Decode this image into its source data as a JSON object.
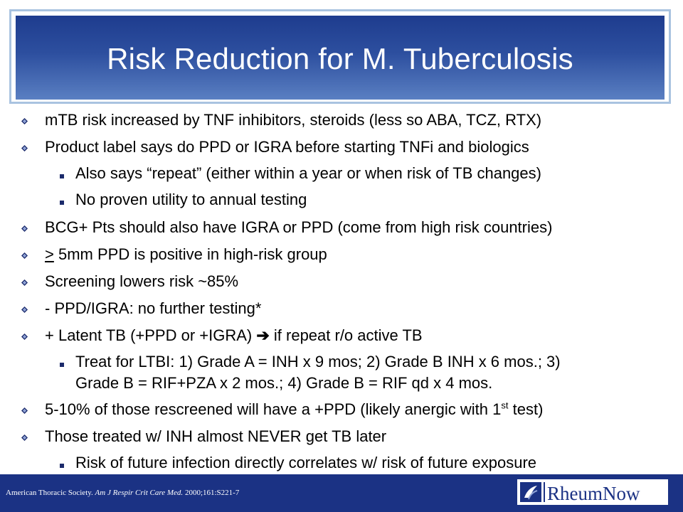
{
  "slide": {
    "title": "Risk Reduction for M. Tuberculosis",
    "bullets": {
      "b0": "mTB risk increased by TNF inhibitors, steroids (less so ABA, TCZ, RTX)",
      "b1": "Product label says do PPD or IGRA before starting TNFi and biologics",
      "b1a": "Also says “repeat” (either within a year or when risk of TB changes)",
      "b1b": "No proven utility to annual testing",
      "b2": "BCG+ Pts should also have IGRA or PPD (come from high risk countries)",
      "b3_sym": ">",
      "b3": " 5mm PPD is positive in high-risk group",
      "b4": "Screening lowers risk ~85%",
      "b5": "- PPD/IGRA: no further testing*",
      "b6_pre": "+ Latent TB (+PPD or +IGRA) ",
      "b6_arrow": "➔",
      "b6_post": " if repeat r/o active TB",
      "b6a_line1": "Treat for LTBI: 1) Grade A = INH x 9 mos; 2) Grade B INH x 6 mos.; 3)",
      "b6a_line2": "Grade B = RIF+PZA x 2 mos.; 4) Grade B = RIF qd x 4 mos.",
      "b7_pre": "5-10% of those rescreened will have a +PPD (likely anergic with 1",
      "b7_sup": "st",
      "b7_post": " test)",
      "b8": "Those treated w/ INH almost NEVER get TB later",
      "b8a": "Risk of future infection directly correlates w/ risk of future exposure"
    }
  },
  "footer": {
    "cite_pre": "American Thoracic Society. ",
    "cite_journal": "Am J Respir Crit Care Med.",
    "cite_post": " 2000;161:S221-7",
    "logo_text": "RheumNow"
  },
  "colors": {
    "title_bg": "#1e3c8e",
    "footer_bg": "#1b3284",
    "bullet": "#1b2a6b"
  }
}
